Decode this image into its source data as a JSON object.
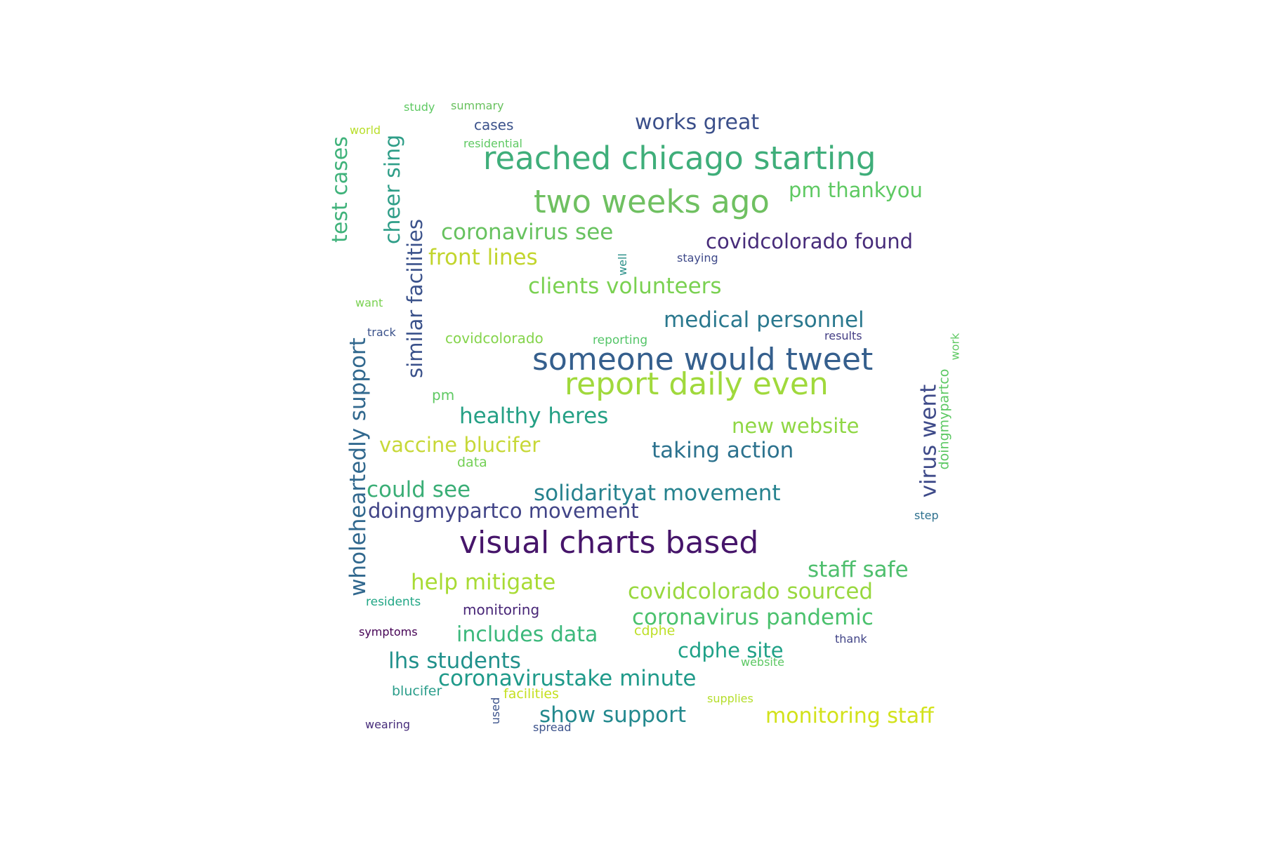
{
  "words": [
    {
      "text": "reached chicago starting",
      "color": "#3fae7a"
    },
    {
      "text": "two weeks ago",
      "color": "#6fc061"
    },
    {
      "text": "someone would tweet",
      "color": "#355f8d"
    },
    {
      "text": "report daily even",
      "color": "#a0d93c"
    },
    {
      "text": "visual charts based",
      "color": "#46156a"
    },
    {
      "text": "works great",
      "color": "#3b4f8a"
    },
    {
      "text": "pm thankyou",
      "color": "#5ec962"
    },
    {
      "text": "coronavirus see",
      "color": "#67c25f"
    },
    {
      "text": "covidcolorado found",
      "color": "#472c7a"
    },
    {
      "text": "front lines",
      "color": "#c2d52d"
    },
    {
      "text": "clients volunteers",
      "color": "#7ad151"
    },
    {
      "text": "medical personnel",
      "color": "#2a788e"
    },
    {
      "text": "healthy heres",
      "color": "#25a085"
    },
    {
      "text": "new website",
      "color": "#8fd744"
    },
    {
      "text": "vaccine blucifer",
      "color": "#c7d838"
    },
    {
      "text": "taking action",
      "color": "#2c728e"
    },
    {
      "text": "could see",
      "color": "#3aae76"
    },
    {
      "text": "solidarityat movement",
      "color": "#26828e"
    },
    {
      "text": "doingmypartco movement",
      "color": "#414487"
    },
    {
      "text": "staff safe",
      "color": "#4fbf6e"
    },
    {
      "text": "help mitigate",
      "color": "#a8db34"
    },
    {
      "text": "covidcolorado sourced",
      "color": "#98d83e"
    },
    {
      "text": "coronavirus pandemic",
      "color": "#4ac16d"
    },
    {
      "text": "includes data",
      "color": "#3bb87b"
    },
    {
      "text": "cdphe site",
      "color": "#1fa187"
    },
    {
      "text": "lhs students",
      "color": "#21918c"
    },
    {
      "text": "coronavirustake minute",
      "color": "#1f9a8a"
    },
    {
      "text": "show support",
      "color": "#23898e"
    },
    {
      "text": "monitoring staff",
      "color": "#d2e21b"
    },
    {
      "text": "test cases",
      "color": "#3fb27a"
    },
    {
      "text": "cheer sing",
      "color": "#2f9e88"
    },
    {
      "text": "similar facilities",
      "color": "#3b528b"
    },
    {
      "text": "wholeheartedly support",
      "color": "#31688e"
    },
    {
      "text": "virus went",
      "color": "#3e4a89"
    },
    {
      "text": "doingmypartco",
      "color": "#5cc863"
    },
    {
      "text": "work",
      "color": "#5ec962"
    },
    {
      "text": "well",
      "color": "#2b9089"
    },
    {
      "text": "study",
      "color": "#5ec962"
    },
    {
      "text": "summary",
      "color": "#68c15d"
    },
    {
      "text": "cases",
      "color": "#3b528b"
    },
    {
      "text": "residential",
      "color": "#5ec962"
    },
    {
      "text": "world",
      "color": "#b8de29"
    },
    {
      "text": "staying",
      "color": "#3e4989"
    },
    {
      "text": "want",
      "color": "#7ad151"
    },
    {
      "text": "track",
      "color": "#3b528b"
    },
    {
      "text": "covidcolorado",
      "color": "#84d44b"
    },
    {
      "text": "reporting",
      "color": "#54c568"
    },
    {
      "text": "results",
      "color": "#433d84"
    },
    {
      "text": "pm",
      "color": "#5ec962"
    },
    {
      "text": "data",
      "color": "#73d055"
    },
    {
      "text": "step",
      "color": "#2d708e"
    },
    {
      "text": "residents",
      "color": "#21a685"
    },
    {
      "text": "monitoring",
      "color": "#482677"
    },
    {
      "text": "symptoms",
      "color": "#440154"
    },
    {
      "text": "cdphe",
      "color": "#bddf26"
    },
    {
      "text": "thank",
      "color": "#414487"
    },
    {
      "text": "website",
      "color": "#5cc863"
    },
    {
      "text": "blucifer",
      "color": "#2a9d8a"
    },
    {
      "text": "facilities",
      "color": "#c5e021"
    },
    {
      "text": "used",
      "color": "#3b528b"
    },
    {
      "text": "supplies",
      "color": "#b5de2b"
    },
    {
      "text": "wearing",
      "color": "#472d7b"
    },
    {
      "text": "spread",
      "color": "#3b528b"
    }
  ]
}
